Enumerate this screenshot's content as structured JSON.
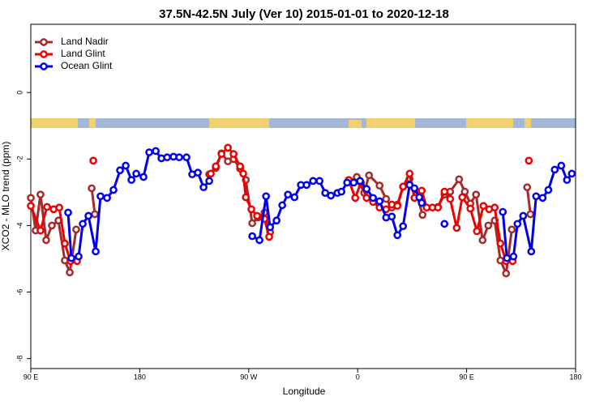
{
  "chart_data": {
    "type": "line",
    "title": "37.5N-42.5N July (Ver 10)   2015-01-01 to 2020-12-18",
    "x_label": "Longitude",
    "y_label": "XCO2 - MLO trend (ppm)",
    "xlim": [
      90,
      540
    ],
    "ylim": [
      -8.3,
      2.05
    ],
    "xticks": [
      {
        "value": 90,
        "label": "90 E"
      },
      {
        "value": 180,
        "label": "180"
      },
      {
        "value": 270,
        "label": "90 W"
      },
      {
        "value": 360,
        "label": "0"
      },
      {
        "value": 450,
        "label": "90 E"
      },
      {
        "value": 540,
        "label": "180"
      }
    ],
    "yticks": [
      0,
      -2,
      -4,
      -6,
      -8
    ],
    "legend": "upper left",
    "series": [
      {
        "name": "Land Nadir",
        "color": "#a52a2a",
        "x": [
          90,
          94,
          98,
          102.7,
          107.4,
          112.8,
          118.1,
          122.2,
          127.5,
          null,
          140.3,
          142.9,
          null,
          237.4,
          242.8,
          247.5,
          252.8,
          257.5,
          262.9,
          267.6,
          272.9,
          277.6,
          283,
          287.7,
          null,
          352.6,
          359.3,
          365.4,
          369.4,
          378.1,
          383.5,
          388.2,
          392.8,
          397.5,
          402.9,
          408.9,
          413.6,
          null,
          426.3,
          431.7,
          436.4,
          443.8,
          448.5,
          453.1,
          457.8,
          463.2,
          467.9,
          473.2,
          477.9,
          482.6,
          487.3,
          null,
          500,
          502.7
        ],
        "values": [
          -3.17,
          -4.15,
          -3.07,
          -4.44,
          -4.0,
          -3.85,
          -5.05,
          -5.41,
          -4.12,
          null,
          -2.88,
          -3.66,
          null,
          -2.46,
          -2.27,
          -1.83,
          -2.07,
          -2.0,
          -2.29,
          -2.63,
          -3.93,
          -3.76,
          -3.61,
          -4.2,
          null,
          -2.68,
          -2.54,
          -3.02,
          -2.49,
          -2.8,
          -3.2,
          -3.46,
          -3.37,
          -2.83,
          -2.59,
          -3.07,
          -3.68,
          null,
          -3.44,
          -3.07,
          -2.98,
          -2.61,
          -2.98,
          -3.34,
          -3.07,
          -4.44,
          -4.0,
          -3.85,
          -5.05,
          -5.44,
          -4.12,
          null,
          -2.85,
          -3.66
        ]
      },
      {
        "name": "Land Glint",
        "color": "#ee0000",
        "x": [
          90,
          98,
          103.4,
          108.8,
          113.5,
          118.1,
          122.8,
          128.2,
          null,
          141.6,
          null,
          238.7,
          242.8,
          247.5,
          252.8,
          257.5,
          262.9,
          265.5,
          267.6,
          272.2,
          276.9,
          283,
          286.9,
          null,
          352.6,
          358,
          362.7,
          367.4,
          372.7,
          378.1,
          383.5,
          388.2,
          392.8,
          397.5,
          402.9,
          406.9,
          412.9,
          417,
          421.7,
          426.3,
          431.7,
          436.4,
          441.8,
          446.4,
          453.1,
          458.5,
          463.9,
          468.6,
          473.2,
          477.9,
          482.6,
          488,
          null,
          501.4
        ],
        "values": [
          -3.41,
          -4.15,
          -3.44,
          -3.51,
          -3.46,
          -4.54,
          -5.07,
          -5.07,
          null,
          -2.05,
          null,
          -2.44,
          -2.22,
          -1.85,
          -1.66,
          -1.85,
          -2.22,
          -2.44,
          -3.15,
          -3.51,
          -3.71,
          -3.8,
          -4.34,
          null,
          -2.63,
          -3.17,
          -2.71,
          -3.17,
          -3.29,
          -3.46,
          -3.51,
          -3.37,
          -3.41,
          -2.83,
          -2.44,
          -3.17,
          -2.95,
          -3.46,
          -3.46,
          -3.46,
          -2.98,
          -3.2,
          -4.07,
          -3.15,
          -3.49,
          -4.17,
          -3.41,
          -3.51,
          -3.46,
          -4.54,
          -5.07,
          -5.07,
          null,
          -2.05
        ]
      },
      {
        "name": "Ocean Glint",
        "color": "#0000ee",
        "x": [
          120.8,
          123.5,
          129.5,
          132.9,
          137.6,
          143.6,
          147.6,
          153,
          158.3,
          163.7,
          168.4,
          173.1,
          177.1,
          183.1,
          187.8,
          193.2,
          197.9,
          202.6,
          207.9,
          212.6,
          218.6,
          223.3,
          228,
          232.7,
          237.4,
          null,
          272.9,
          278.9,
          284.3,
          287.7,
          293,
          297.7,
          302.4,
          307.8,
          313.1,
          317.8,
          323.2,
          328.5,
          333.2,
          337.9,
          343.3,
          346.6,
          351.3,
          356.7,
          362,
          367.4,
          372.7,
          378.1,
          383.5,
          388.2,
          392.8,
          397.5,
          402.9,
          406.9,
          410.9,
          412.9,
          null,
          431.7,
          null,
          479.9,
          483.3,
          488.7,
          492,
          496.7,
          503.4,
          507.4,
          512.8,
          517.5,
          522.8,
          528.2,
          532.9,
          536.9
        ],
        "values": [
          -3.61,
          -4.98,
          -4.93,
          -3.95,
          -3.71,
          -4.78,
          -3.12,
          -3.17,
          -2.93,
          -2.34,
          -2.2,
          -2.63,
          -2.44,
          -2.54,
          -1.8,
          -1.76,
          -1.98,
          -1.95,
          -1.93,
          -1.95,
          -1.95,
          -2.46,
          -2.41,
          -2.85,
          -2.66,
          null,
          -4.32,
          -4.44,
          -3.12,
          -4.05,
          -3.85,
          -3.39,
          -3.07,
          -3.15,
          -2.78,
          -2.78,
          -2.66,
          -2.66,
          -3.02,
          -3.1,
          -3.02,
          -2.98,
          -2.71,
          -2.71,
          -2.66,
          -2.9,
          -3.17,
          -3.27,
          -3.76,
          -3.73,
          -4.29,
          -4.02,
          -2.78,
          -2.88,
          -3.15,
          -3.32,
          null,
          -3.95,
          null,
          -3.59,
          -4.98,
          -4.93,
          -3.95,
          -3.71,
          -4.78,
          -3.12,
          -3.17,
          -2.93,
          -2.32,
          -2.2,
          -2.63,
          -2.44
        ]
      }
    ]
  }
}
